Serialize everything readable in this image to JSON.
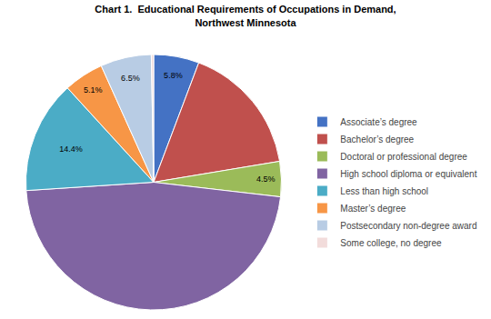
{
  "chart_data": {
    "type": "pie",
    "title": "Chart 1.  Educational Requirements of Occupations in Demand,\nNorthwest Minnesota",
    "categories": [
      "Associate’s degree",
      "Bachelor’s degree",
      "Doctoral or professional degree",
      "High school diploma or equivalent",
      "Less than high school",
      "Master’s degree",
      "Postsecondary non-degree award",
      "Some college, no degree"
    ],
    "values": [
      5.8,
      16.8,
      4.5,
      47.6,
      14.4,
      5.1,
      6.5,
      0.3
    ],
    "value_labels": [
      "5.8%",
      null,
      "4.5%",
      null,
      "14.4%",
      "5.1%",
      "6.5%",
      null
    ],
    "colors": [
      "#4472C4",
      "#C0504D",
      "#9BBB59",
      "#8064A2",
      "#4BACC6",
      "#F79646",
      "#B8CCE4",
      "#F2DCDB"
    ],
    "legend": "right"
  }
}
